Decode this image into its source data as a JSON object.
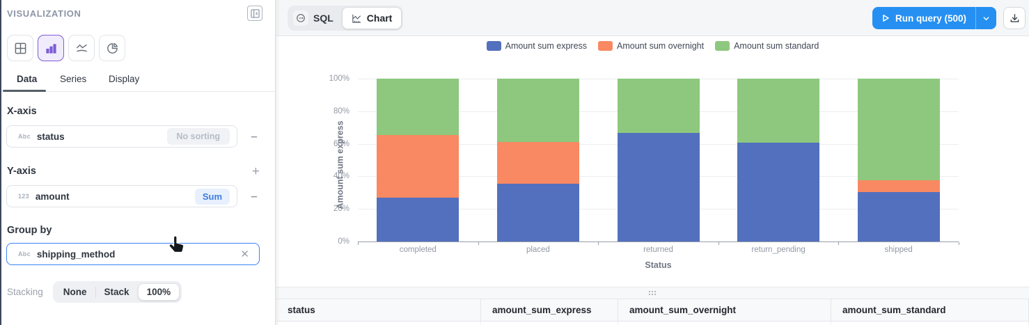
{
  "colors": {
    "accent_blue": "#2590f2",
    "accent_purple": "#7c5cd6",
    "groupby_focus_border": "#3b82f6",
    "series_express": "#5370BE",
    "series_overnight": "#F98962",
    "series_standard": "#8DC87E"
  },
  "sidebar": {
    "title": "VISUALIZATION",
    "chart_type_buttons": [
      {
        "name": "table",
        "selected": false
      },
      {
        "name": "bar",
        "selected": true
      },
      {
        "name": "line",
        "selected": false
      },
      {
        "name": "pie",
        "selected": false
      }
    ],
    "tabs": [
      {
        "label": "Data",
        "active": true
      },
      {
        "label": "Series",
        "active": false
      },
      {
        "label": "Display",
        "active": false
      }
    ],
    "x_axis": {
      "heading": "X-axis",
      "field_type": "Abc",
      "field": "status",
      "sorting": "No sorting"
    },
    "y_axis": {
      "heading": "Y-axis",
      "field_type": "123",
      "field": "amount",
      "aggregation": "Sum"
    },
    "group_by": {
      "heading": "Group by",
      "field_type": "Abc",
      "field": "shipping_method"
    },
    "stacking": {
      "label": "Stacking",
      "options": [
        "None",
        "Stack",
        "100%"
      ],
      "selected": "100%"
    }
  },
  "toolbar": {
    "sql_label": "SQL",
    "chart_label": "Chart",
    "run_label": "Run query (500)"
  },
  "chart_data": {
    "type": "bar",
    "stacking": "100%",
    "categories": [
      "completed",
      "placed",
      "returned",
      "return_pending",
      "shipped"
    ],
    "series": [
      {
        "name": "Amount sum express",
        "color": "#5370BE",
        "values": [
          27,
          35.5,
          66.5,
          60.5,
          30.5
        ]
      },
      {
        "name": "Amount sum overnight",
        "color": "#F98962",
        "values": [
          38.5,
          25.5,
          0,
          0,
          7
        ]
      },
      {
        "name": "Amount sum standard",
        "color": "#8DC87E",
        "values": [
          34.5,
          39,
          33.5,
          39.5,
          62.5
        ]
      }
    ],
    "xlabel": "Status",
    "ylabel": "Amount sum express",
    "y_ticks": [
      "0%",
      "20%",
      "40%",
      "60%",
      "80%",
      "100%"
    ],
    "ylim": [
      0,
      100
    ],
    "grid": true,
    "legend_position": "top"
  },
  "table": {
    "columns": [
      "status",
      "amount_sum_express",
      "amount_sum_overnight",
      "amount_sum_standard"
    ]
  }
}
